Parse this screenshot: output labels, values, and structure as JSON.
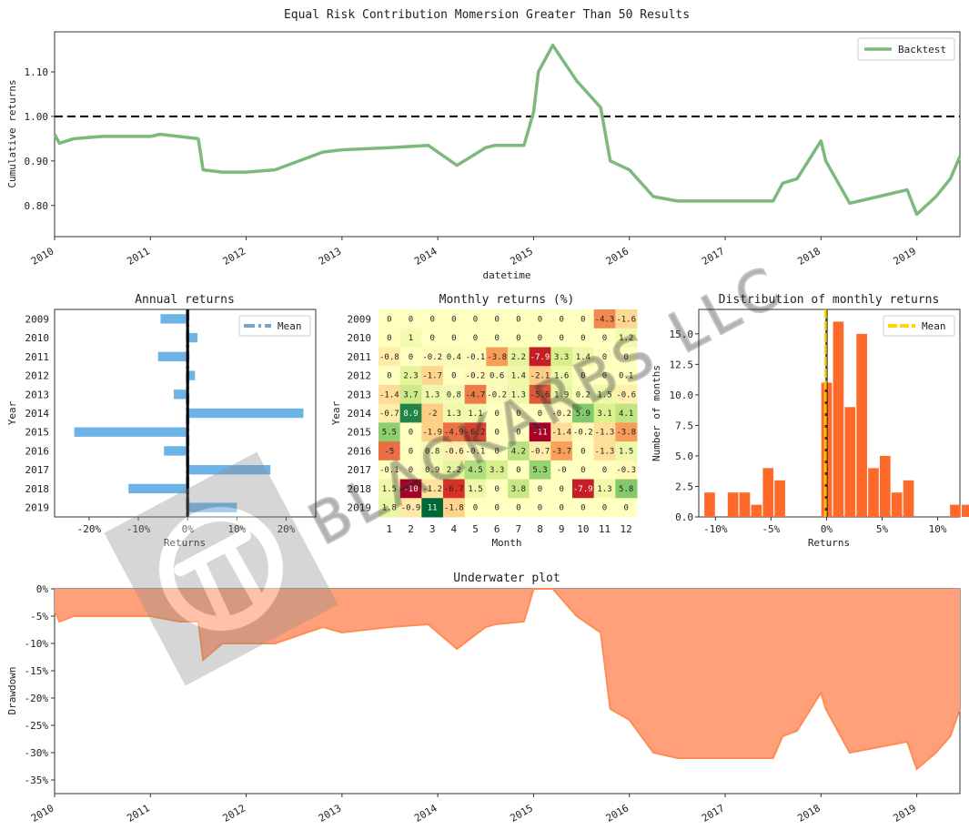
{
  "title": "Equal Risk Contribution Momersion Greater Than 50 Results",
  "colors": {
    "backtest": "#7cb97c",
    "annual": "#6cb4e6",
    "annual_mean": "#5b8fb8",
    "hist": "#ff6a2b",
    "hist_mean": "#ffd700",
    "underwater": "#ffa07a",
    "underwater_line": "#ff8c55"
  },
  "watermark": {
    "text": "BLACKARBS LLC",
    "icon": "pi-logo-icon"
  },
  "chart_data": [
    {
      "id": "cumulative",
      "type": "line",
      "title": "",
      "xlabel": "datetime",
      "ylabel": "Cumulative returns",
      "xlim": [
        2010,
        2019.45
      ],
      "ylim": [
        0.73,
        1.19
      ],
      "x_ticks": [
        "2010",
        "2011",
        "2012",
        "2013",
        "2014",
        "2015",
        "2016",
        "2017",
        "2018",
        "2019"
      ],
      "y_ticks": [
        "0.80",
        "0.90",
        "1.00",
        "1.10"
      ],
      "y_tick_values": [
        0.8,
        0.9,
        1.0,
        1.1
      ],
      "reference_line": 1.0,
      "legend": [
        "Backtest"
      ],
      "legend_position": "top-right",
      "series": [
        {
          "name": "Backtest",
          "x": [
            2010.0,
            2010.05,
            2010.2,
            2010.5,
            2011.0,
            2011.1,
            2011.5,
            2011.55,
            2011.75,
            2012.0,
            2012.3,
            2012.8,
            2013.0,
            2013.5,
            2013.9,
            2014.2,
            2014.5,
            2014.6,
            2014.9,
            2015.0,
            2015.05,
            2015.2,
            2015.45,
            2015.7,
            2015.8,
            2016.0,
            2016.25,
            2016.5,
            2016.75,
            2017.0,
            2017.5,
            2017.6,
            2017.75,
            2018.0,
            2018.05,
            2018.3,
            2018.6,
            2018.9,
            2019.0,
            2019.2,
            2019.35,
            2019.45
          ],
          "values": [
            0.96,
            0.94,
            0.95,
            0.955,
            0.955,
            0.96,
            0.95,
            0.88,
            0.875,
            0.875,
            0.88,
            0.92,
            0.925,
            0.93,
            0.935,
            0.89,
            0.93,
            0.935,
            0.935,
            1.01,
            1.1,
            1.16,
            1.08,
            1.02,
            0.9,
            0.88,
            0.82,
            0.81,
            0.81,
            0.81,
            0.81,
            0.85,
            0.86,
            0.945,
            0.9,
            0.805,
            0.82,
            0.835,
            0.78,
            0.82,
            0.86,
            0.91
          ]
        }
      ]
    },
    {
      "id": "annual",
      "type": "bar",
      "orientation": "horizontal",
      "title": "Annual returns",
      "xlabel": "Returns",
      "ylabel": "Year",
      "xlim": [
        -0.27,
        0.26
      ],
      "x_ticks": [
        "-20%",
        "-10%",
        "0%",
        "10%",
        "20%"
      ],
      "x_tick_values": [
        -0.2,
        -0.1,
        0.0,
        0.1,
        0.2
      ],
      "categories": [
        "2009",
        "2010",
        "2011",
        "2012",
        "2013",
        "2014",
        "2015",
        "2016",
        "2017",
        "2018",
        "2019"
      ],
      "values": [
        -0.055,
        0.02,
        -0.06,
        0.015,
        -0.028,
        0.235,
        -0.23,
        -0.048,
        0.168,
        -0.12,
        0.1
      ],
      "mean": 0.0,
      "legend": [
        "Mean"
      ],
      "legend_position": "top-right"
    },
    {
      "id": "monthly",
      "type": "heatmap",
      "title": "Monthly returns (%)",
      "xlabel": "Month",
      "ylabel": "Year",
      "columns": [
        "1",
        "2",
        "3",
        "4",
        "5",
        "6",
        "7",
        "8",
        "9",
        "10",
        "11",
        "12"
      ],
      "rows": [
        "2009",
        "2010",
        "2011",
        "2012",
        "2013",
        "2014",
        "2015",
        "2016",
        "2017",
        "2018",
        "2019"
      ],
      "values": [
        [
          "0",
          "0",
          "0",
          "0",
          "0",
          "0",
          "0",
          "0",
          "0",
          "0",
          "-4.3",
          "-1.6"
        ],
        [
          "0",
          "1",
          "0",
          "0",
          "0",
          "0",
          "0",
          "0",
          "0",
          "0",
          "0",
          "1.2"
        ],
        [
          "-0.8",
          "0",
          "-0.2",
          "0.4",
          "-0.1",
          "-3.8",
          "2.2",
          "-7.9",
          "3.3",
          "1.4",
          "0",
          "0"
        ],
        [
          "0",
          "2.3",
          "-1.7",
          "0",
          "-0.2",
          "0.6",
          "1.4",
          "-2.1",
          "1.6",
          "0",
          "0",
          "0.1"
        ],
        [
          "-1.4",
          "3.7",
          "1.3",
          "0.8",
          "-4.7",
          "-0.2",
          "1.3",
          "-5.6",
          "1.9",
          "0.2",
          "1.5",
          "-0.6"
        ],
        [
          "-0.7",
          "8.9",
          "-2",
          "1.3",
          "1.1",
          "0",
          "0",
          "0",
          "-0.2",
          "5.9",
          "3.1",
          "4.1"
        ],
        [
          "5.5",
          "0",
          "-1.9",
          "-4.9",
          "-6.2",
          "0",
          "0",
          "-11",
          "-1.4",
          "-0.2",
          "-1.3",
          "-3.8"
        ],
        [
          "-5",
          "0",
          "0.8",
          "-0.6",
          "-0.1",
          "0",
          "4.2",
          "-0.7",
          "-3.7",
          "0",
          "-1.3",
          "1.5"
        ],
        [
          "-0.1",
          "0",
          "0.9",
          "2.2",
          "4.5",
          "3.3",
          "0",
          "5.3",
          "-0",
          "0",
          "0",
          "-0.3"
        ],
        [
          "1.5",
          "-10",
          "-1.2",
          "-6.7",
          "1.5",
          "0",
          "3.8",
          "0",
          "0",
          "-7.9",
          "1.3",
          "5.8"
        ],
        [
          "1.8",
          "-0.9",
          "11",
          "-1.8",
          "0",
          "0",
          "0",
          "0",
          "0",
          "0",
          "0",
          "0"
        ]
      ]
    },
    {
      "id": "distribution",
      "type": "bar",
      "title": "Distribution of monthly returns",
      "xlabel": "Returns",
      "ylabel": "Number of months",
      "xlim": [
        -0.115,
        0.12
      ],
      "ylim": [
        0,
        17
      ],
      "x_ticks": [
        "-10%",
        "-5%",
        "0%",
        "5%",
        "10%"
      ],
      "x_tick_values": [
        -0.1,
        -0.05,
        0.0,
        0.05,
        0.1
      ],
      "y_ticks": [
        "0.0",
        "2.5",
        "5.0",
        "7.5",
        "10.0",
        "12.5",
        "15.0"
      ],
      "y_tick_values": [
        0,
        2.5,
        5,
        7.5,
        10,
        12.5,
        15
      ],
      "bin_start": -0.11,
      "bin_width": 0.01053,
      "values": [
        2,
        0,
        2,
        2,
        1,
        4,
        3,
        0,
        0,
        0,
        11,
        16,
        9,
        15,
        4,
        5,
        2,
        3,
        0,
        0,
        0,
        1,
        1
      ],
      "mean": -0.001,
      "legend": [
        "Mean"
      ],
      "legend_position": "top-right"
    },
    {
      "id": "underwater",
      "type": "area",
      "title": "Underwater plot",
      "xlabel": "",
      "ylabel": "Drawdown",
      "xlim": [
        2010,
        2019.45
      ],
      "ylim": [
        -0.375,
        0.0
      ],
      "x_ticks": [
        "2010",
        "2011",
        "2012",
        "2013",
        "2014",
        "2015",
        "2016",
        "2017",
        "2018",
        "2019"
      ],
      "y_ticks": [
        "0%",
        "-5%",
        "-10%",
        "-15%",
        "-20%",
        "-25%",
        "-30%",
        "-35%"
      ],
      "y_tick_values": [
        0,
        -0.05,
        -0.1,
        -0.15,
        -0.2,
        -0.25,
        -0.3,
        -0.35
      ],
      "series": [
        {
          "name": "",
          "x": [
            2010.0,
            2010.05,
            2010.2,
            2011.0,
            2011.3,
            2011.5,
            2011.55,
            2011.75,
            2012.0,
            2012.3,
            2012.8,
            2013.0,
            2013.5,
            2013.9,
            2014.2,
            2014.5,
            2014.6,
            2014.9,
            2015.0,
            2015.05,
            2015.2,
            2015.45,
            2015.7,
            2015.8,
            2016.0,
            2016.25,
            2016.5,
            2016.75,
            2017.0,
            2017.5,
            2017.6,
            2017.75,
            2018.0,
            2018.05,
            2018.3,
            2018.6,
            2018.9,
            2019.0,
            2019.2,
            2019.35,
            2019.45
          ],
          "values": [
            -0.04,
            -0.06,
            -0.05,
            -0.05,
            -0.06,
            -0.06,
            -0.13,
            -0.1,
            -0.1,
            -0.1,
            -0.07,
            -0.08,
            -0.07,
            -0.065,
            -0.11,
            -0.07,
            -0.065,
            -0.06,
            0.0,
            0.0,
            0.0,
            -0.05,
            -0.08,
            -0.22,
            -0.24,
            -0.3,
            -0.31,
            -0.31,
            -0.31,
            -0.31,
            -0.27,
            -0.26,
            -0.19,
            -0.22,
            -0.3,
            -0.29,
            -0.28,
            -0.33,
            -0.3,
            -0.27,
            -0.22
          ]
        }
      ]
    }
  ]
}
